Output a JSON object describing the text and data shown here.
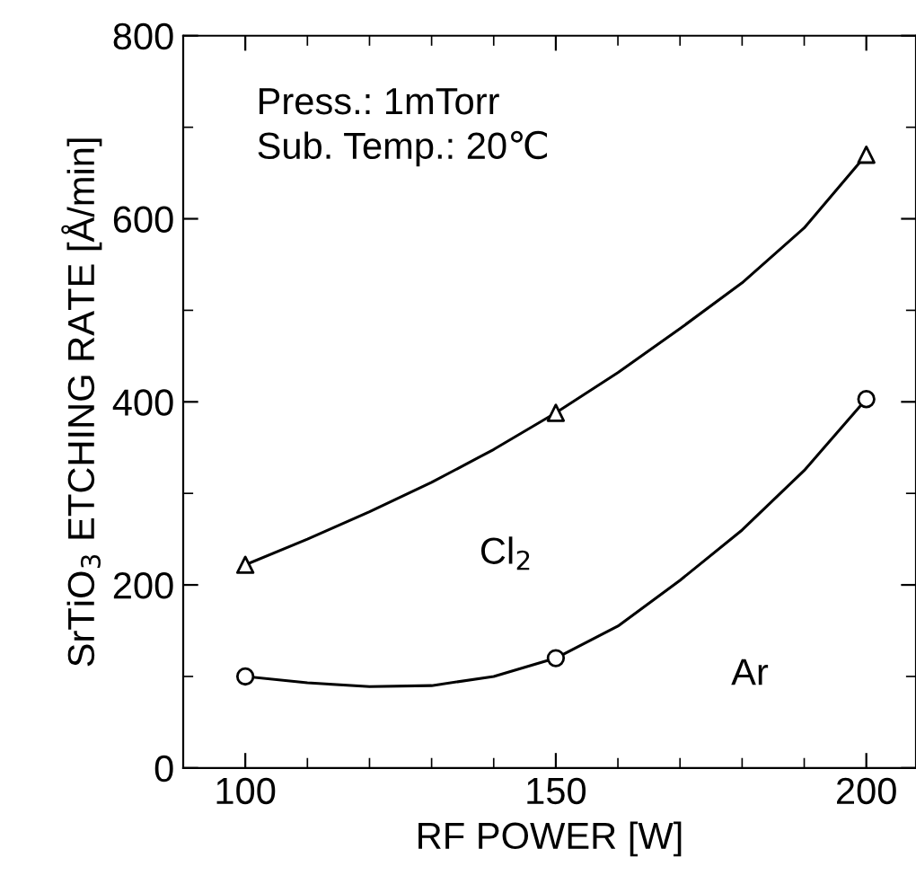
{
  "chart_data": {
    "type": "line",
    "xlabel": "RF POWER [W]",
    "ylabel": "SrTiO$_{3}$ ETCHING RATE [Å/min]",
    "series": [
      {
        "name": "Cl$_{2}$",
        "color": "#000000",
        "x": [
          100,
          110,
          120,
          130,
          140,
          150,
          160,
          170,
          180,
          190,
          200
        ],
        "values": [
          222,
          250,
          280,
          312,
          348,
          388,
          432,
          480,
          530,
          590,
          670
        ]
      },
      {
        "name": "Ar",
        "color": "#000000",
        "x": [
          100,
          110,
          120,
          130,
          140,
          150,
          160,
          170,
          180,
          190,
          200
        ],
        "values": [
          100,
          93,
          89,
          90,
          100,
          120,
          155,
          205,
          260,
          325,
          403
        ]
      },
      {
        "type": "scatter",
        "color": "#000000",
        "x": [
          100,
          150,
          200
        ],
        "values": [
          222,
          388,
          670
        ],
        "marker": "triangle"
      },
      {
        "type": "scatter",
        "color": "#000000",
        "x": [
          100,
          150,
          200
        ],
        "values": [
          100,
          120,
          403
        ],
        "marker": "circle"
      }
    ],
    "annotations": [
      "Press.: 1mTorr",
      "Sub. Temp.: 20℃"
    ],
    "xlim": [
      90,
      208
    ],
    "xticks": [
      100,
      150,
      200
    ],
    "ylim": [
      0,
      800
    ],
    "yticks": [
      0,
      200,
      400,
      600,
      800
    ],
    "grid": false,
    "legend": false,
    "line_style": "solid"
  }
}
